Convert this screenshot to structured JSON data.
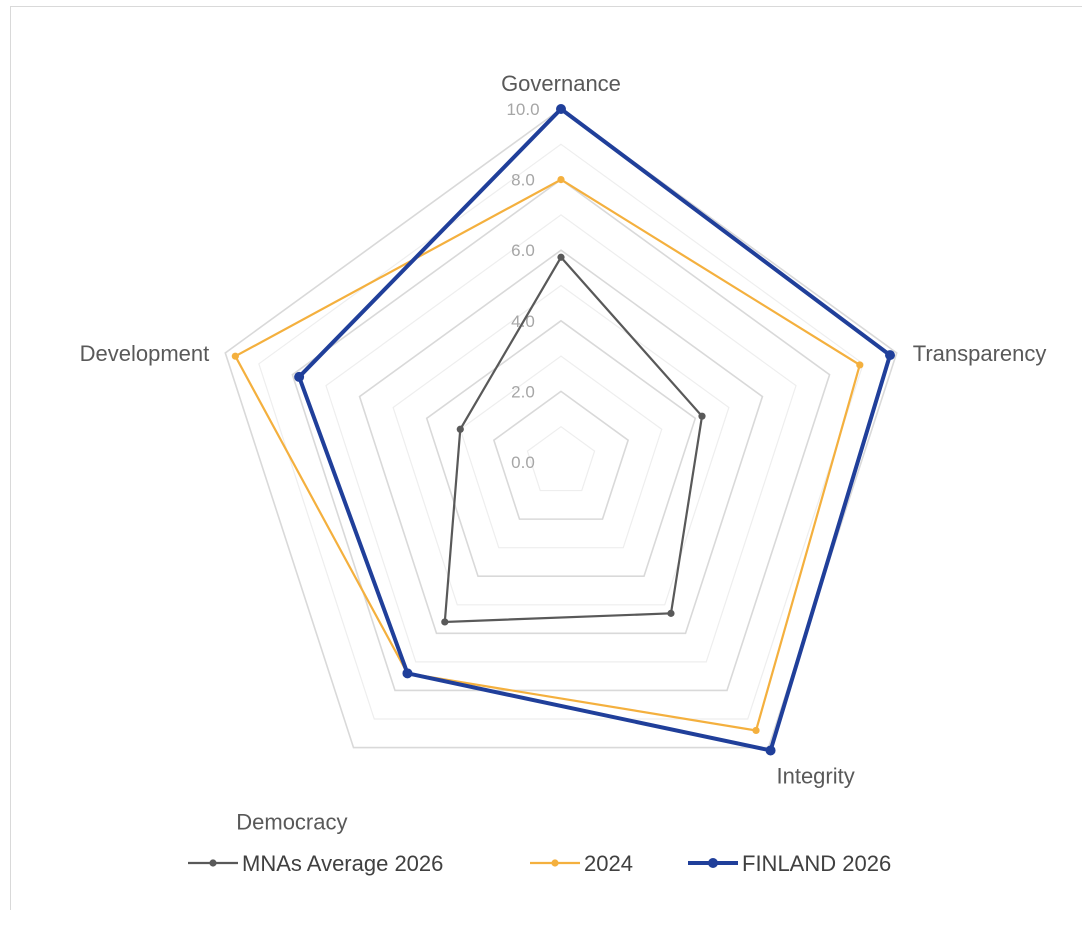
{
  "chart_data": {
    "type": "radar",
    "categories": [
      "Governance",
      "Transparency",
      "Integrity",
      "Democracy",
      "Development"
    ],
    "rlim": [
      0,
      10
    ],
    "ticks": [
      "0.0",
      "2.0",
      "4.0",
      "6.0",
      "8.0",
      "10.0"
    ],
    "grid": true,
    "legend_position": "bottom",
    "series": [
      {
        "name": "MNAs Average 2026",
        "values": [
          5.8,
          4.2,
          5.3,
          5.6,
          3.0
        ],
        "color": "#595959"
      },
      {
        "name": "2024",
        "values": [
          8.0,
          8.9,
          9.4,
          7.4,
          9.7
        ],
        "color": "#f4b03e"
      },
      {
        "name": "FINLAND 2026",
        "values": [
          10.0,
          9.8,
          10.1,
          7.4,
          7.8
        ],
        "color": "#203f9a"
      }
    ]
  }
}
